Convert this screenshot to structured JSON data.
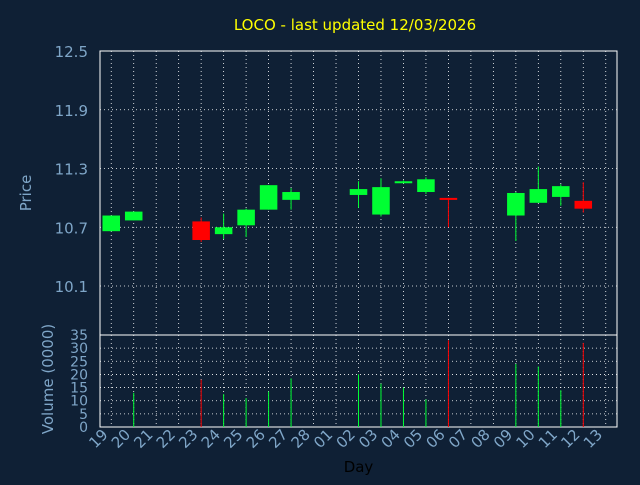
{
  "title": "LOCO - last updated 12/03/2026",
  "colors": {
    "background": "#0f2035",
    "plot_background": "#0f2035",
    "axis": "#ffffff",
    "grid": "#ffffff",
    "label": "#7fa6c8",
    "title": "#ffff00",
    "up": "#00ff33",
    "down": "#ff0000"
  },
  "chart_data": [
    {
      "type": "candlestick",
      "ylabel": "Price",
      "ylim": [
        9.6,
        12.5
      ],
      "yticks": [
        "12.5",
        "11.9",
        "11.3",
        "10.7",
        "10.1"
      ],
      "ytick_values": [
        12.5,
        11.9,
        11.3,
        10.7,
        10.1
      ],
      "grid": true,
      "candles": [
        {
          "day": "19",
          "open": 10.66,
          "close": 10.82,
          "high": 10.82,
          "low": 10.66
        },
        {
          "day": "20",
          "open": 10.77,
          "close": 10.86,
          "high": 10.86,
          "low": 10.77
        },
        {
          "day": "23",
          "open": 10.76,
          "close": 10.57,
          "high": 10.8,
          "low": 10.55
        },
        {
          "day": "24",
          "open": 10.63,
          "close": 10.7,
          "high": 10.84,
          "low": 10.58
        },
        {
          "day": "25",
          "open": 10.72,
          "close": 10.88,
          "high": 10.89,
          "low": 10.6
        },
        {
          "day": "26",
          "open": 10.88,
          "close": 11.13,
          "high": 11.13,
          "low": 10.88
        },
        {
          "day": "27",
          "open": 10.98,
          "close": 11.06,
          "high": 11.1,
          "low": 10.88
        },
        {
          "day": "02",
          "open": 11.03,
          "close": 11.09,
          "high": 11.17,
          "low": 10.9
        },
        {
          "day": "03",
          "open": 10.83,
          "close": 11.11,
          "high": 11.2,
          "low": 10.81
        },
        {
          "day": "04",
          "open": 11.16,
          "close": 11.17,
          "high": 11.18,
          "low": 11.15
        },
        {
          "day": "05",
          "open": 11.06,
          "close": 11.19,
          "high": 11.21,
          "low": 11.04
        },
        {
          "day": "06",
          "open": 11.0,
          "close": 10.99,
          "high": 11.0,
          "low": 10.7
        },
        {
          "day": "09",
          "open": 10.82,
          "close": 11.05,
          "high": 11.06,
          "low": 10.56
        },
        {
          "day": "10",
          "open": 10.95,
          "close": 11.09,
          "high": 11.32,
          "low": 10.95
        },
        {
          "day": "11",
          "open": 11.01,
          "close": 11.12,
          "high": 11.14,
          "low": 10.92
        },
        {
          "day": "12",
          "open": 10.97,
          "close": 10.89,
          "high": 11.16,
          "low": 10.85
        }
      ]
    },
    {
      "type": "bar",
      "ylabel": "Volume (0000)",
      "xlabel": "Day",
      "ylim": [
        0,
        35
      ],
      "yticks": [
        "35",
        "30",
        "25",
        "20",
        "15",
        "10",
        "5",
        "0"
      ],
      "ytick_values": [
        35,
        30,
        25,
        20,
        15,
        10,
        5,
        0
      ],
      "grid": true,
      "categories": [
        "19",
        "20",
        "21",
        "22",
        "23",
        "24",
        "25",
        "26",
        "27",
        "28",
        "01",
        "02",
        "03",
        "04",
        "05",
        "06",
        "07",
        "08",
        "09",
        "10",
        "11",
        "12",
        "13"
      ],
      "values": [
        0,
        13,
        0,
        0,
        18,
        12.5,
        11,
        13.5,
        18.5,
        0,
        0,
        20,
        16.5,
        15,
        10.5,
        33,
        0,
        0,
        24,
        23,
        14,
        32,
        0
      ],
      "bar_direction": [
        "none",
        "up",
        "none",
        "none",
        "down",
        "up",
        "up",
        "up",
        "up",
        "none",
        "none",
        "up",
        "up",
        "up",
        "up",
        "down",
        "none",
        "none",
        "up",
        "up",
        "up",
        "down",
        "none"
      ]
    }
  ]
}
